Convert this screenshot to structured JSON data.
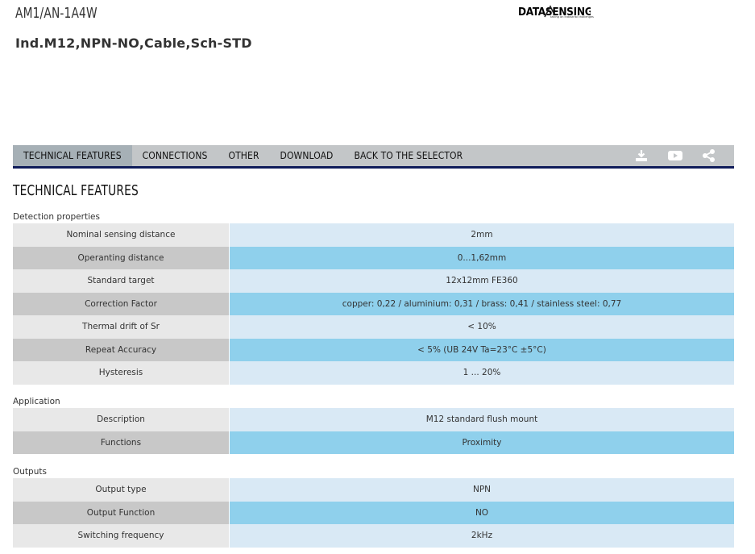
{
  "header": {
    "product_code": "AM1/AN-1A4W",
    "product_description": "Ind.M12,NPN-NO,Cable,Sch-STD",
    "logo_text": "DATASENSING",
    "logo_tagline": "taking on industrial challenges"
  },
  "nav": {
    "tabs": [
      {
        "label": "TECHNICAL FEATURES",
        "active": true
      },
      {
        "label": "CONNECTIONS"
      },
      {
        "label": "OTHER"
      },
      {
        "label": "DOWNLOAD"
      },
      {
        "label": "BACK TO THE SELECTOR"
      }
    ],
    "icons": [
      "download-icon",
      "youtube-icon",
      "share-icon"
    ],
    "active_bg": "#a6b0b6",
    "bar_bg": "#c3c6c8",
    "underline_color": "#0f1c5a"
  },
  "main": {
    "section_title": "TECHNICAL FEATURES",
    "groups": [
      {
        "title": "Detection properties",
        "rows": [
          {
            "label": "Nominal sensing distance",
            "value": "2mm"
          },
          {
            "label": "Operanting distance",
            "value": "0...1,62mm"
          },
          {
            "label": "Standard target",
            "value": "12x12mm FE360"
          },
          {
            "label": "Correction Factor",
            "value": "copper: 0,22 / aluminium: 0,31 / brass: 0,41 / stainless steel: 0,77"
          },
          {
            "label": "Thermal drift of Sr",
            "value": "< 10%"
          },
          {
            "label": "Repeat Accuracy",
            "value": "< 5% (UB 24V Ta=23°C ±5°C)"
          },
          {
            "label": "Hysteresis",
            "value": "1 ... 20%"
          }
        ]
      },
      {
        "title": "Application",
        "rows": [
          {
            "label": "Description",
            "value": "M12 standard flush mount"
          },
          {
            "label": "Functions",
            "value": "Proximity"
          }
        ]
      },
      {
        "title": "Outputs",
        "rows": [
          {
            "label": "Output type",
            "value": "NPN"
          },
          {
            "label": "Output Function",
            "value": "NO"
          },
          {
            "label": "Switching frequency",
            "value": "2kHz"
          }
        ]
      }
    ]
  }
}
